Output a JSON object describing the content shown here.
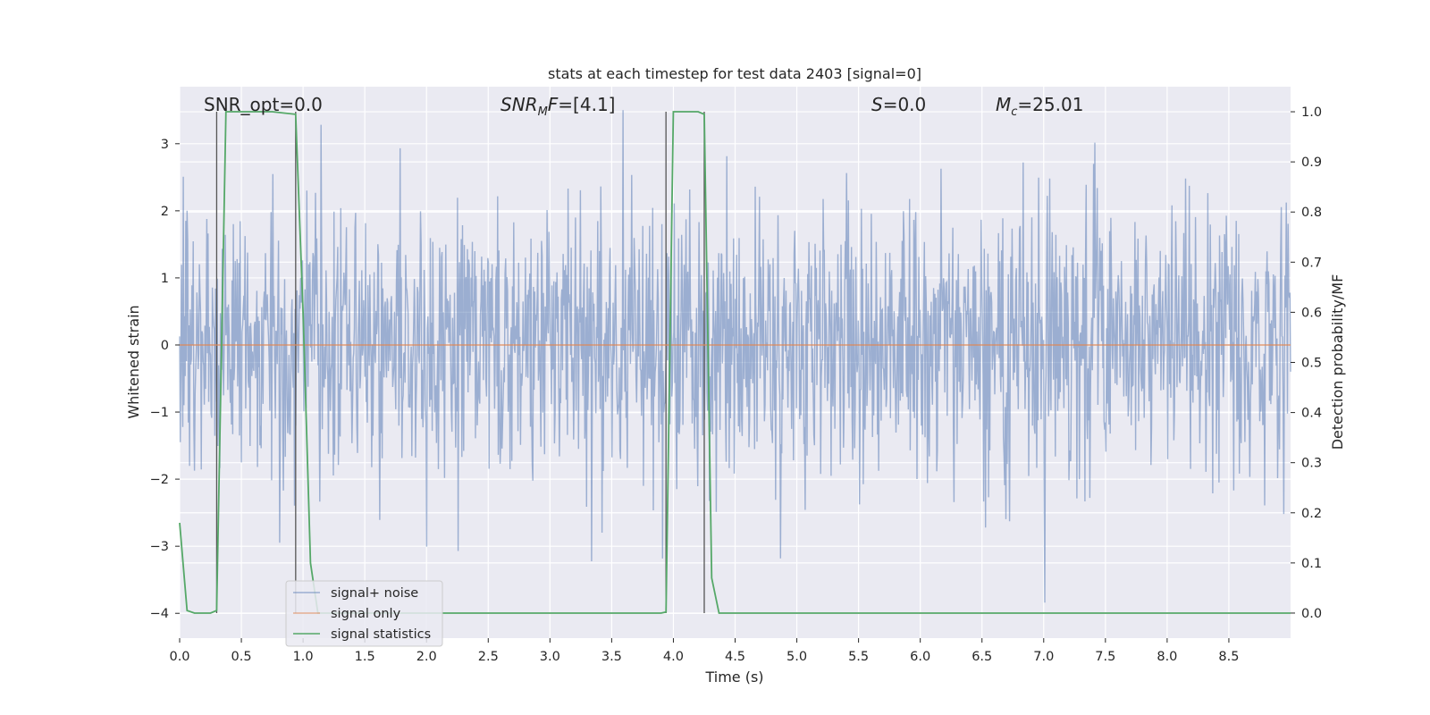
{
  "chart_data": {
    "type": "line",
    "title": "stats at each timestep for test data 2403 [signal=0]",
    "xlabel": "Time (s)",
    "ylabel": "Whitened strain",
    "ylabel_right": "Detection probability/MF",
    "xlim": [
      0.0,
      9.0
    ],
    "ylim": [
      -4.37,
      3.85
    ],
    "ylim_right": [
      -0.05,
      1.05
    ],
    "x_ticks": [
      "0.0",
      "0.5",
      "1.0",
      "1.5",
      "2.0",
      "2.5",
      "3.0",
      "3.5",
      "4.0",
      "4.5",
      "5.0",
      "5.5",
      "6.0",
      "6.5",
      "7.0",
      "7.5",
      "8.0",
      "8.5"
    ],
    "y_ticks": [
      "3",
      "2",
      "1",
      "0",
      "−1",
      "−2",
      "−3",
      "−4"
    ],
    "y_ticks_right": [
      "1.0",
      "0.9",
      "0.8",
      "0.7",
      "0.6",
      "0.5",
      "0.4",
      "0.3",
      "0.2",
      "0.1",
      "0.0"
    ],
    "grid": true,
    "legend_position": "lower-left",
    "annotations": [
      {
        "text": "SNR_opt=0.0",
        "italic": false
      },
      {
        "text": "SNR_MF=[4.1]",
        "italic": true
      },
      {
        "text": "S=0.0",
        "italic": true
      },
      {
        "text": "M_c=25.01",
        "italic": true
      }
    ],
    "series": [
      {
        "name": "signal+ noise",
        "color": "#4c72b0",
        "axis": "left",
        "description": "whitened strain noise, approx. N(0,1), dense",
        "duration": 9.0,
        "sample_count": 1800
      },
      {
        "name": "signal only",
        "color": "#dd8452",
        "axis": "left",
        "x": [
          0.0,
          9.0
        ],
        "y": [
          0.0,
          0.0
        ]
      },
      {
        "name": "signal statistics",
        "color": "#55a868",
        "axis": "right",
        "x": [
          0.0,
          0.06,
          0.12,
          0.25,
          0.3,
          0.375,
          0.5,
          0.75,
          0.94,
          1.0,
          1.06,
          1.12,
          1.25,
          2.0,
          3.0,
          3.9,
          3.94,
          4.0,
          4.1,
          4.2,
          4.25,
          4.31,
          4.37,
          4.44,
          5.0,
          6.0,
          7.0,
          8.0,
          9.0
        ],
        "y": [
          0.18,
          0.005,
          0.0,
          0.0,
          0.005,
          1.0,
          1.0,
          1.0,
          0.995,
          0.6,
          0.1,
          0.0,
          0.0,
          0.0,
          0.0,
          0.0,
          0.002,
          1.0,
          1.0,
          1.0,
          0.995,
          0.07,
          0.0,
          0.0,
          0.0,
          0.0,
          0.0,
          0.0,
          0.0
        ]
      },
      {
        "name": "",
        "color": "#555555",
        "axis": "left",
        "type": "vlines",
        "x": [
          0.3,
          0.94,
          3.94,
          4.25
        ]
      }
    ]
  },
  "legend": [
    {
      "label": "signal+ noise",
      "color": "#4c72b0"
    },
    {
      "label": "signal only",
      "color": "#dd8452"
    },
    {
      "label": "signal statistics",
      "color": "#55a868"
    }
  ]
}
